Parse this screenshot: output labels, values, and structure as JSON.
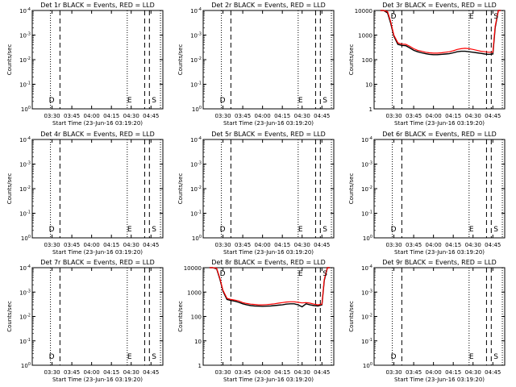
{
  "chart_data": [
    {
      "title": "Det 1r BLACK = Events, RED = LLD",
      "type": "line",
      "ylabel": "Counts/sec",
      "xlabel": "Start Time (23-Jun-16 03:19:20)",
      "x_ticks": [
        "03:30",
        "03:45",
        "04:00",
        "04:15",
        "04:30",
        "04:45"
      ],
      "y_ticks": [
        "10^0",
        "10^-1",
        "10^-2",
        "10^-3",
        "10^-4"
      ],
      "ylim": [
        0.0001,
        1
      ],
      "log_y": true,
      "markers": [
        "D",
        "E",
        "S"
      ],
      "series": []
    },
    {
      "title": "Det 2r BLACK = Events, RED = LLD",
      "type": "line",
      "ylabel": "Counts/sec",
      "xlabel": "Start Time (23-Jun-16 03:19:20)",
      "x_ticks": [
        "03:30",
        "03:45",
        "04:00",
        "04:15",
        "04:30",
        "04:45"
      ],
      "y_ticks": [
        "10^0",
        "10^-1",
        "10^-2",
        "10^-3",
        "10^-4"
      ],
      "ylim": [
        0.0001,
        1
      ],
      "log_y": true,
      "markers": [
        "D",
        "E",
        "S"
      ],
      "series": []
    },
    {
      "title": "Det 3r BLACK = Events, RED = LLD",
      "type": "line",
      "ylabel": "Counts/sec",
      "xlabel": "Start Time (23-Jun-16 03:19:20)",
      "x_ticks": [
        "03:30",
        "03:45",
        "04:00",
        "04:15",
        "04:30",
        "04:45"
      ],
      "y_ticks": [
        "1",
        "10",
        "100",
        "1000",
        "10000"
      ],
      "ylim": [
        1,
        10000
      ],
      "log_y": true,
      "markers": [
        "D",
        "E",
        "S"
      ],
      "series": [
        {
          "color": "#000000",
          "x": [
            3.33,
            3.37,
            3.42,
            3.46,
            3.5,
            3.55,
            3.6,
            3.65,
            3.7,
            3.75,
            3.8,
            3.85,
            3.9,
            3.95,
            4.0,
            4.05,
            4.1,
            4.15,
            4.2,
            4.25,
            4.3,
            4.35,
            4.4,
            4.45,
            4.5,
            4.55,
            4.6,
            4.65,
            4.7,
            4.75,
            4.78,
            4.82,
            4.85
          ],
          "values": [
            10000,
            10000,
            8000,
            3000,
            900,
            420,
            380,
            370,
            300,
            240,
            210,
            190,
            175,
            165,
            160,
            160,
            165,
            170,
            175,
            190,
            210,
            220,
            220,
            210,
            200,
            190,
            180,
            170,
            165,
            170,
            2000,
            10000,
            10000
          ]
        },
        {
          "color": "#ff0000",
          "x": [
            3.33,
            3.37,
            3.42,
            3.46,
            3.5,
            3.55,
            3.6,
            3.65,
            3.7,
            3.75,
            3.8,
            3.85,
            3.9,
            3.95,
            4.0,
            4.05,
            4.1,
            4.15,
            4.2,
            4.25,
            4.3,
            4.35,
            4.4,
            4.45,
            4.5,
            4.55,
            4.6,
            4.65,
            4.7,
            4.75,
            4.78,
            4.82,
            4.85
          ],
          "values": [
            10000,
            10000,
            9000,
            3500,
            1000,
            480,
            430,
            420,
            350,
            280,
            240,
            220,
            200,
            190,
            185,
            185,
            190,
            200,
            210,
            230,
            260,
            280,
            290,
            280,
            260,
            240,
            220,
            210,
            200,
            200,
            2300,
            10000,
            10000
          ]
        }
      ]
    },
    {
      "title": "Det 4r BLACK = Events, RED = LLD",
      "type": "line",
      "ylabel": "Counts/sec",
      "xlabel": "Start Time (23-Jun-16 03:19:20)",
      "x_ticks": [
        "03:30",
        "03:45",
        "04:00",
        "04:15",
        "04:30",
        "04:45"
      ],
      "y_ticks": [
        "10^0",
        "10^-1",
        "10^-2",
        "10^-3",
        "10^-4"
      ],
      "ylim": [
        0.0001,
        1
      ],
      "log_y": true,
      "markers": [
        "D",
        "E",
        "S"
      ],
      "series": []
    },
    {
      "title": "Det 5r BLACK = Events, RED = LLD",
      "type": "line",
      "ylabel": "Counts/sec",
      "xlabel": "Start Time (23-Jun-16 03:19:20)",
      "x_ticks": [
        "03:30",
        "03:45",
        "04:00",
        "04:15",
        "04:30",
        "04:45"
      ],
      "y_ticks": [
        "10^0",
        "10^-1",
        "10^-2",
        "10^-3",
        "10^-4"
      ],
      "ylim": [
        0.0001,
        1
      ],
      "log_y": true,
      "markers": [
        "D",
        "E",
        "S"
      ],
      "series": []
    },
    {
      "title": "Det 6r BLACK = Events, RED = LLD",
      "type": "line",
      "ylabel": "Counts/sec",
      "xlabel": "Start Time (23-Jun-16 03:19:20)",
      "x_ticks": [
        "03:30",
        "03:45",
        "04:00",
        "04:15",
        "04:30",
        "04:45"
      ],
      "y_ticks": [
        "10^0",
        "10^-1",
        "10^-2",
        "10^-3",
        "10^-4"
      ],
      "ylim": [
        0.0001,
        1
      ],
      "log_y": true,
      "markers": [
        "D",
        "E",
        "S"
      ],
      "series": []
    },
    {
      "title": "Det 7r BLACK = Events, RED = LLD",
      "type": "line",
      "ylabel": "Counts/sec",
      "xlabel": "Start Time (23-Jun-16 03:19:20)",
      "x_ticks": [
        "03:30",
        "03:45",
        "04:00",
        "04:15",
        "04:30",
        "04:45"
      ],
      "y_ticks": [
        "10^0",
        "10^-1",
        "10^-2",
        "10^-3",
        "10^-4"
      ],
      "ylim": [
        0.0001,
        1
      ],
      "log_y": true,
      "markers": [
        "D",
        "E",
        "S"
      ],
      "series": []
    },
    {
      "title": "Det 8r BLACK = Events, RED = LLD",
      "type": "line",
      "ylabel": "Counts/sec",
      "xlabel": "Start Time (23-Jun-16 03:19:20)",
      "x_ticks": [
        "03:30",
        "03:45",
        "04:00",
        "04:15",
        "04:30",
        "04:45"
      ],
      "y_ticks": [
        "1",
        "10",
        "100",
        "1000",
        "10000"
      ],
      "ylim": [
        1,
        10000
      ],
      "log_y": true,
      "markers": [
        "D",
        "E",
        "S"
      ],
      "series": [
        {
          "color": "#000000",
          "x": [
            3.33,
            3.37,
            3.42,
            3.46,
            3.5,
            3.55,
            3.6,
            3.65,
            3.7,
            3.75,
            3.8,
            3.85,
            3.9,
            3.95,
            4.0,
            4.05,
            4.1,
            4.15,
            4.2,
            4.25,
            4.3,
            4.35,
            4.4,
            4.45,
            4.5,
            4.55,
            4.6,
            4.65,
            4.7,
            4.75,
            4.78,
            4.82,
            4.85
          ],
          "values": [
            10000,
            10000,
            9000,
            3500,
            1100,
            500,
            450,
            420,
            380,
            330,
            300,
            280,
            270,
            265,
            260,
            265,
            270,
            280,
            290,
            300,
            320,
            330,
            330,
            300,
            250,
            330,
            300,
            280,
            270,
            300,
            3000,
            10000,
            10000
          ]
        },
        {
          "color": "#ff0000",
          "x": [
            3.33,
            3.37,
            3.42,
            3.46,
            3.5,
            3.55,
            3.6,
            3.65,
            3.7,
            3.75,
            3.8,
            3.85,
            3.9,
            3.95,
            4.0,
            4.05,
            4.1,
            4.15,
            4.2,
            4.25,
            4.3,
            4.35,
            4.4,
            4.45,
            4.5,
            4.55,
            4.6,
            4.65,
            4.7,
            4.75,
            4.78,
            4.82,
            4.85
          ],
          "values": [
            10000,
            10000,
            9500,
            3800,
            1200,
            560,
            500,
            470,
            430,
            370,
            340,
            320,
            310,
            300,
            300,
            305,
            315,
            330,
            350,
            370,
            390,
            400,
            400,
            380,
            360,
            370,
            350,
            320,
            300,
            320,
            3300,
            10000,
            10000
          ]
        }
      ]
    },
    {
      "title": "Det 9r BLACK = Events, RED = LLD",
      "type": "line",
      "ylabel": "Counts/sec",
      "xlabel": "Start Time (23-Jun-16 03:19:20)",
      "x_ticks": [
        "03:30",
        "03:45",
        "04:00",
        "04:15",
        "04:30",
        "04:45"
      ],
      "y_ticks": [
        "10^0",
        "10^-1",
        "10^-2",
        "10^-3",
        "10^-4"
      ],
      "ylim": [
        0.0001,
        1
      ],
      "log_y": true,
      "markers": [
        "D",
        "E",
        "S"
      ],
      "series": []
    }
  ]
}
